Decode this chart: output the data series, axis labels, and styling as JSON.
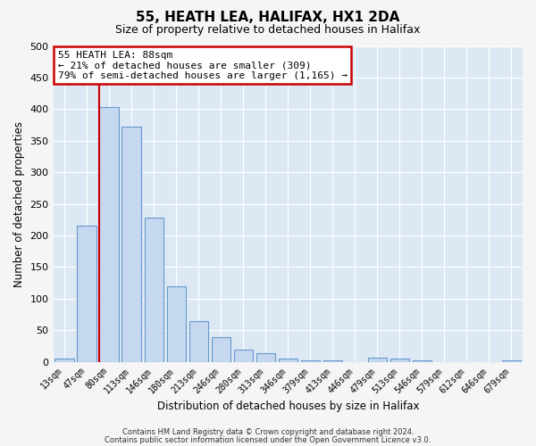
{
  "title": "55, HEATH LEA, HALIFAX, HX1 2DA",
  "subtitle": "Size of property relative to detached houses in Halifax",
  "xlabel": "Distribution of detached houses by size in Halifax",
  "ylabel": "Number of detached properties",
  "bar_labels": [
    "13sqm",
    "47sqm",
    "80sqm",
    "113sqm",
    "146sqm",
    "180sqm",
    "213sqm",
    "246sqm",
    "280sqm",
    "313sqm",
    "346sqm",
    "379sqm",
    "413sqm",
    "446sqm",
    "479sqm",
    "513sqm",
    "546sqm",
    "579sqm",
    "612sqm",
    "646sqm",
    "679sqm"
  ],
  "bar_values": [
    5,
    215,
    404,
    372,
    228,
    120,
    65,
    39,
    20,
    14,
    5,
    2,
    2,
    0,
    6,
    5,
    2,
    0,
    0,
    0,
    3
  ],
  "bar_color": "#c5d8f0",
  "bar_edge_color": "#6699cc",
  "vline_color": "#cc0000",
  "annotation_title": "55 HEATH LEA: 88sqm",
  "annotation_line1": "← 21% of detached houses are smaller (309)",
  "annotation_line2": "79% of semi-detached houses are larger (1,165) →",
  "ylim": [
    0,
    500
  ],
  "yticks": [
    0,
    50,
    100,
    150,
    200,
    250,
    300,
    350,
    400,
    450,
    500
  ],
  "fig_bg_color": "#f5f5f5",
  "plot_bg_color": "#dde8f5",
  "footer_line1": "Contains HM Land Registry data © Crown copyright and database right 2024.",
  "footer_line2": "Contains public sector information licensed under the Open Government Licence v3.0."
}
